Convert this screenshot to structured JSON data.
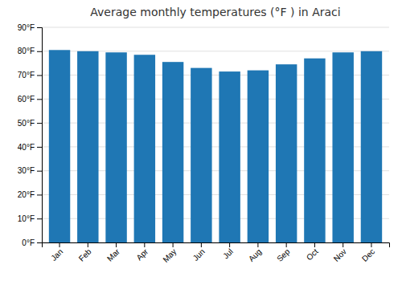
{
  "chart_data": {
    "type": "bar",
    "title": "Average monthly temperatures (°F ) in Araci",
    "categories": [
      "Jan",
      "Feb",
      "Mar",
      "Apr",
      "May",
      "Jun",
      "Jul",
      "Aug",
      "Sep",
      "Oct",
      "Nov",
      "Dec"
    ],
    "values": [
      80.5,
      80.0,
      79.5,
      78.5,
      75.5,
      73.0,
      71.5,
      72.0,
      74.5,
      77.0,
      79.5,
      80.0
    ],
    "ylim": [
      0,
      90
    ],
    "yticks": [
      {
        "value": 0,
        "label": "0°F"
      },
      {
        "value": 10,
        "label": "10°F"
      },
      {
        "value": 20,
        "label": "20°F"
      },
      {
        "value": 30,
        "label": "30°F"
      },
      {
        "value": 40,
        "label": "40°F"
      },
      {
        "value": 50,
        "label": "50°F"
      },
      {
        "value": 60,
        "label": "60°F"
      },
      {
        "value": 70,
        "label": "70°F"
      },
      {
        "value": 80,
        "label": "80°F"
      },
      {
        "value": 90,
        "label": "90°F"
      }
    ],
    "grid": true
  }
}
